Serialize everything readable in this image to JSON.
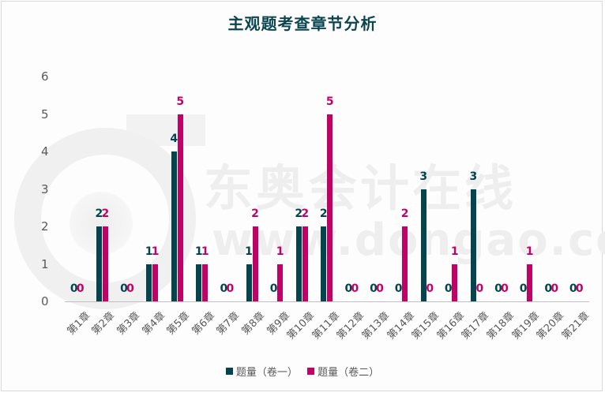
{
  "chart_data": {
    "type": "bar",
    "title": "主观题考查章节分析",
    "xlabel": "",
    "ylabel": "",
    "ylim": [
      0,
      6
    ],
    "yticks": [
      0,
      1,
      2,
      3,
      4,
      5,
      6
    ],
    "grid": false,
    "legend_position": "bottom",
    "categories": [
      "第1章",
      "第2章",
      "第3章",
      "第4章",
      "第5章",
      "第6章",
      "第7章",
      "第8章",
      "第9章",
      "第10章",
      "第11章",
      "第12章",
      "第13章",
      "第14章",
      "第15章",
      "第16章",
      "第17章",
      "第18章",
      "第19章",
      "第20章",
      "第21章"
    ],
    "series": [
      {
        "name": "题量（卷一）",
        "color": "#03444e",
        "values": [
          0,
          2,
          0,
          1,
          4,
          1,
          0,
          1,
          0,
          2,
          2,
          0,
          0,
          0,
          3,
          0,
          3,
          0,
          0,
          0,
          0
        ]
      },
      {
        "name": "题量（卷二）",
        "color": "#c00267",
        "values": [
          0,
          2,
          0,
          1,
          5,
          1,
          0,
          2,
          1,
          2,
          5,
          0,
          0,
          2,
          0,
          1,
          0,
          0,
          1,
          0,
          0
        ]
      }
    ]
  },
  "watermark": {
    "text": "东奥会计在线",
    "url": "www.dongao.com"
  }
}
